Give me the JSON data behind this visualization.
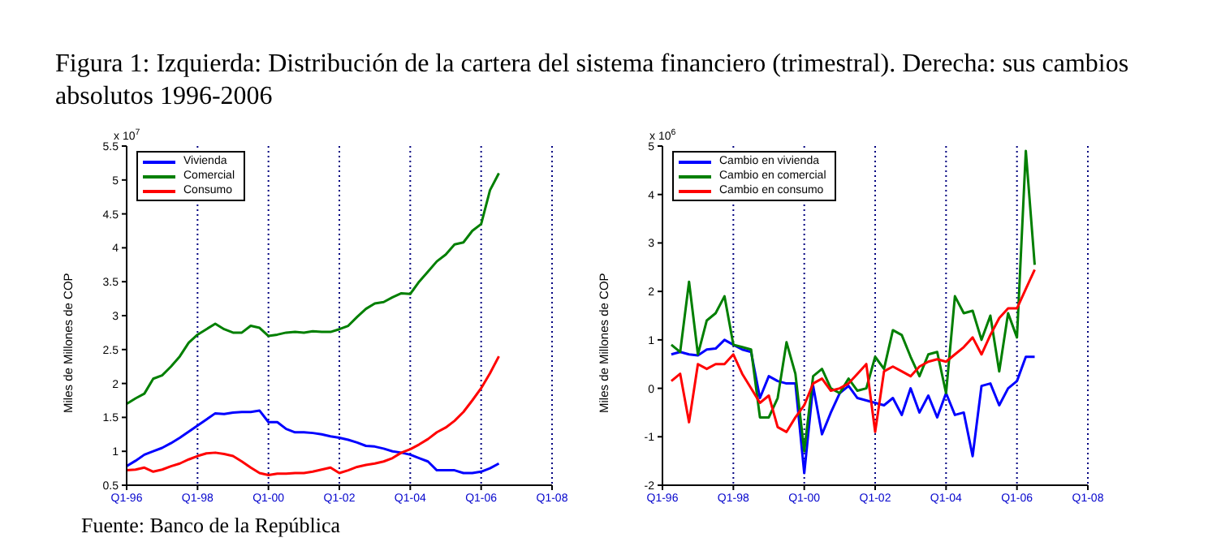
{
  "chart_data": [
    {
      "type": "line",
      "title": "Figura 1: Izquierda: Distribución de la cartera del sistema financiero (trimestral). Derecha: sus cambios absolutos 1996-2006",
      "ylabel": "Miles de Millones de COP",
      "annotations": [
        "x 10$^{7}$",
        "Fuente: Banco de la República"
      ],
      "categories": [
        "Q1-96",
        null,
        null,
        null,
        null,
        null,
        null,
        null,
        "Q1-98",
        null,
        null,
        null,
        null,
        null,
        null,
        null,
        "Q1-00",
        null,
        null,
        null,
        null,
        null,
        null,
        null,
        "Q1-02",
        null,
        null,
        null,
        null,
        null,
        null,
        null,
        "Q1-04",
        null,
        null,
        null,
        null,
        null,
        null,
        null,
        "Q1-06",
        null,
        null,
        null,
        null,
        null,
        null,
        null,
        "Q1-08"
      ],
      "series": [
        {
          "name": "Vivienda",
          "color": "#0000ff",
          "values": [
            0.78,
            0.86,
            0.95,
            1.0,
            1.05,
            1.12,
            1.2,
            1.29,
            1.38,
            1.47,
            1.56,
            1.55,
            1.57,
            1.58,
            1.58,
            1.6,
            1.43,
            1.43,
            1.33,
            1.28,
            1.28,
            1.27,
            1.25,
            1.22,
            1.2,
            1.17,
            1.13,
            1.08,
            1.07,
            1.04,
            1.0,
            0.98,
            0.95,
            0.9,
            0.85,
            0.72,
            0.72,
            0.72,
            0.68,
            0.68,
            0.7,
            0.75,
            0.82,
            null,
            null,
            null,
            null,
            null,
            null
          ]
        },
        {
          "name": "Comercial",
          "color": "#007f00",
          "values": [
            1.7,
            1.78,
            1.85,
            2.07,
            2.12,
            2.25,
            2.4,
            2.6,
            2.72,
            2.8,
            2.88,
            2.8,
            2.75,
            2.75,
            2.85,
            2.82,
            2.7,
            2.72,
            2.75,
            2.76,
            2.75,
            2.77,
            2.76,
            2.76,
            2.8,
            2.85,
            2.98,
            3.1,
            3.18,
            3.2,
            3.27,
            3.33,
            3.32,
            3.5,
            3.65,
            3.8,
            3.9,
            4.05,
            4.08,
            4.25,
            4.35,
            4.85,
            5.1,
            null,
            null,
            null,
            null,
            null,
            null
          ]
        },
        {
          "name": "Consumo",
          "color": "#ff0000",
          "values": [
            0.72,
            0.73,
            0.76,
            0.7,
            0.73,
            0.78,
            0.82,
            0.88,
            0.93,
            0.97,
            0.98,
            0.96,
            0.93,
            0.85,
            0.76,
            0.68,
            0.65,
            0.67,
            0.67,
            0.68,
            0.68,
            0.7,
            0.73,
            0.76,
            0.68,
            0.72,
            0.77,
            0.8,
            0.82,
            0.85,
            0.9,
            0.98,
            1.03,
            1.1,
            1.18,
            1.28,
            1.35,
            1.45,
            1.58,
            1.75,
            1.93,
            2.15,
            2.4,
            null,
            null,
            null,
            null,
            null,
            null
          ]
        }
      ],
      "ylim": [
        0.5,
        5.5
      ],
      "yticks": [
        0.5,
        1,
        1.5,
        2,
        2.5,
        3,
        3.5,
        4,
        4.5,
        5,
        5.5
      ],
      "grid": "x",
      "legend": "top left",
      "line_style": "solid"
    },
    {
      "type": "line",
      "ylabel": "Miles de Millones de COP",
      "annotations": [
        "x 10$^{6}$"
      ],
      "categories": [
        "Q1-96",
        null,
        null,
        null,
        null,
        null,
        null,
        null,
        "Q1-98",
        null,
        null,
        null,
        null,
        null,
        null,
        null,
        "Q1-00",
        null,
        null,
        null,
        null,
        null,
        null,
        null,
        "Q1-02",
        null,
        null,
        null,
        null,
        null,
        null,
        null,
        "Q1-04",
        null,
        null,
        null,
        null,
        null,
        null,
        null,
        "Q1-06",
        null,
        null,
        null,
        null,
        null,
        null,
        null,
        "Q1-08"
      ],
      "series": [
        {
          "name": "Cambio en vivienda",
          "color": "#0000ff",
          "values": [
            null,
            0.7,
            0.75,
            0.7,
            0.68,
            0.8,
            0.82,
            1.0,
            0.9,
            0.8,
            0.75,
            -0.2,
            0.25,
            0.15,
            0.1,
            0.1,
            -1.75,
            0.05,
            -0.95,
            -0.5,
            -0.1,
            0.05,
            -0.2,
            -0.25,
            -0.3,
            -0.35,
            -0.2,
            -0.55,
            0.0,
            -0.5,
            -0.15,
            -0.6,
            -0.1,
            -0.55,
            -0.5,
            -1.4,
            0.05,
            0.1,
            -0.35,
            0.0,
            0.15,
            0.65,
            0.65,
            null,
            null,
            null,
            null,
            null,
            null
          ]
        },
        {
          "name": "Cambio en comercial",
          "color": "#007f00",
          "values": [
            null,
            0.9,
            0.75,
            2.2,
            0.7,
            1.4,
            1.55,
            1.9,
            0.9,
            0.85,
            0.8,
            -0.6,
            -0.6,
            -0.2,
            0.95,
            0.3,
            -1.3,
            0.25,
            0.4,
            0.0,
            -0.1,
            0.2,
            -0.05,
            0.0,
            0.65,
            0.4,
            1.2,
            1.1,
            0.65,
            0.25,
            0.7,
            0.75,
            -0.1,
            1.9,
            1.55,
            1.6,
            1.0,
            1.5,
            0.35,
            1.55,
            1.05,
            4.9,
            2.55,
            null,
            null,
            null,
            null,
            null,
            null
          ]
        },
        {
          "name": "Cambio en consumo",
          "color": "#ff0000",
          "values": [
            null,
            0.15,
            0.3,
            -0.7,
            0.5,
            0.4,
            0.5,
            0.5,
            0.7,
            0.3,
            0.0,
            -0.3,
            -0.15,
            -0.8,
            -0.9,
            -0.6,
            -0.35,
            0.1,
            0.2,
            -0.05,
            0.0,
            0.1,
            0.3,
            0.5,
            -0.9,
            0.35,
            0.45,
            0.35,
            0.25,
            0.45,
            0.55,
            0.6,
            0.55,
            0.7,
            0.85,
            1.05,
            0.7,
            1.1,
            1.45,
            1.65,
            1.65,
            2.05,
            2.45,
            null,
            null,
            null,
            null,
            null,
            null
          ]
        }
      ],
      "ylim": [
        -2,
        5
      ],
      "yticks": [
        -2,
        -1,
        0,
        1,
        2,
        3,
        4,
        5
      ],
      "grid": "x",
      "legend": "top left",
      "line_style": "solid"
    }
  ]
}
